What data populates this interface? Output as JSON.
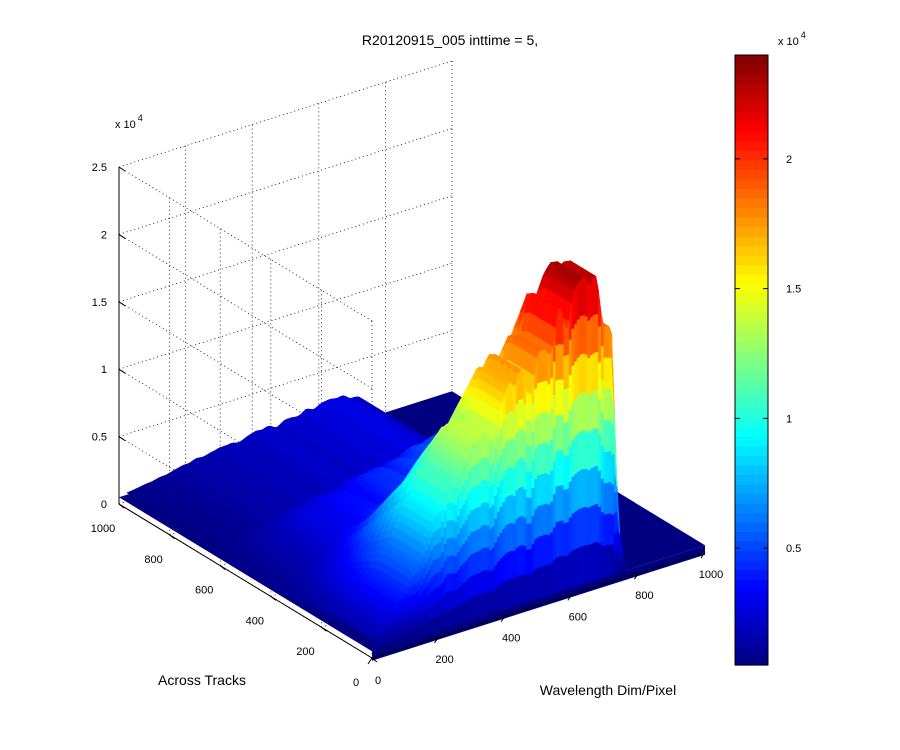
{
  "chart_data": {
    "type": "surface3d",
    "title": "R20120915_005 inttime = 5,",
    "xlabel": "Wavelength Dim/Pixel",
    "ylabel": "Across Tracks",
    "zlabel": "",
    "x_ticks": [
      0,
      200,
      400,
      600,
      800,
      1000
    ],
    "y_ticks": [
      0,
      200,
      400,
      600,
      800,
      1000
    ],
    "z_ticks": [
      0,
      0.5,
      1,
      1.5,
      2,
      2.5
    ],
    "z_multiplier": "x 10",
    "z_multiplier_exp": "4",
    "xlim": [
      0,
      1000
    ],
    "ylim": [
      0,
      1000
    ],
    "zlim": [
      0,
      25000
    ],
    "grid": true,
    "colormap": "jet",
    "colorbar": {
      "ticks": [
        0.5,
        1,
        1.5,
        2
      ],
      "range": [
        500,
        24000
      ],
      "multiplier": "x 10",
      "multiplier_exp": "4"
    },
    "surface": {
      "front_edge_spectrum_x": [
        0,
        20,
        40,
        60,
        80,
        100,
        120,
        140,
        160,
        180,
        200,
        230,
        260,
        290,
        320,
        350,
        380,
        410,
        440,
        470,
        500,
        530,
        560,
        590,
        620,
        650,
        680,
        700,
        720,
        740,
        760
      ],
      "front_edge_spectrum_z": [
        1400,
        1900,
        2400,
        3000,
        3700,
        4500,
        5300,
        6200,
        7200,
        8000,
        9000,
        10500,
        11500,
        12200,
        14000,
        13000,
        15000,
        16500,
        17500,
        16000,
        18500,
        18000,
        20500,
        21500,
        22500,
        23000,
        21500,
        20500,
        18000,
        4000,
        500
      ],
      "back_edge_spectrum_z_max": 3000,
      "baseline": 500
    }
  }
}
